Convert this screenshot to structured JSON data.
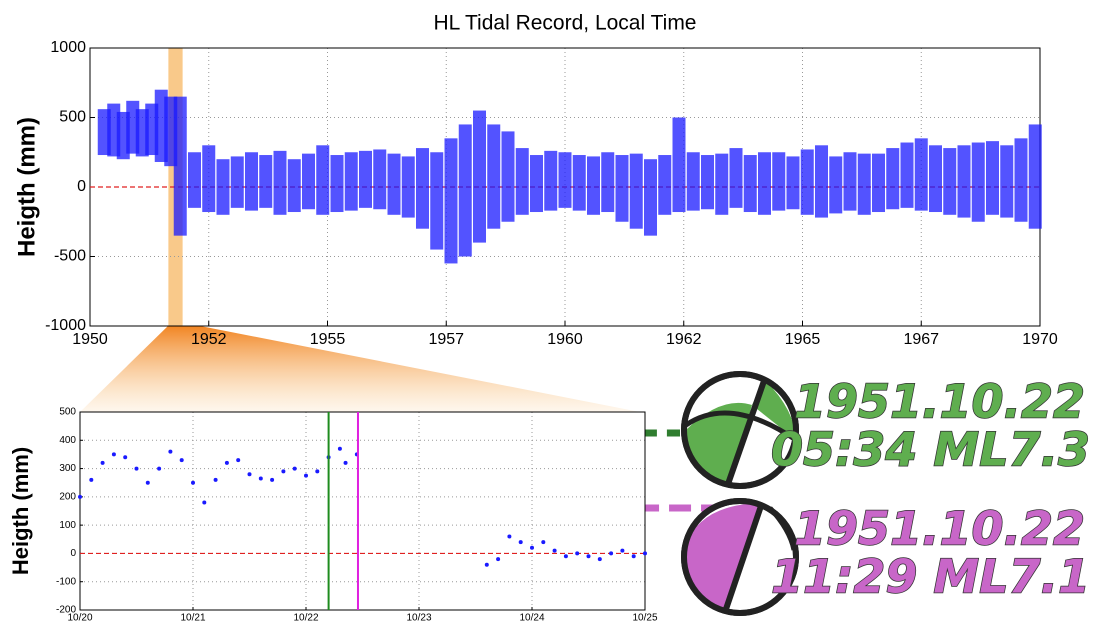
{
  "chart_data": [
    {
      "type": "range",
      "title": "HL Tidal Record, Local Time",
      "y_label": "Heigth (mm)",
      "x": [
        1950.3,
        1950.5,
        1950.7,
        1950.9,
        1951.1,
        1951.3,
        1951.5,
        1951.7,
        1951.9,
        1952.2,
        1952.5,
        1952.8,
        1953.1,
        1953.4,
        1953.7,
        1954.0,
        1954.3,
        1954.6,
        1954.9,
        1955.2,
        1955.5,
        1955.8,
        1956.1,
        1956.4,
        1956.7,
        1957.0,
        1957.3,
        1957.6,
        1957.9,
        1958.2,
        1958.5,
        1958.8,
        1959.1,
        1959.4,
        1959.7,
        1960.0,
        1960.3,
        1960.6,
        1960.9,
        1961.2,
        1961.5,
        1961.8,
        1962.1,
        1962.4,
        1962.7,
        1963.0,
        1963.3,
        1963.6,
        1963.9,
        1964.2,
        1964.5,
        1964.8,
        1965.1,
        1965.4,
        1965.7,
        1966.0,
        1966.3,
        1966.6,
        1966.9,
        1967.2,
        1967.5,
        1967.8,
        1968.1,
        1968.4,
        1968.7,
        1969.0,
        1969.3,
        1969.6,
        1969.9
      ],
      "high": [
        560,
        600,
        540,
        620,
        560,
        600,
        700,
        650,
        650,
        250,
        300,
        200,
        220,
        250,
        230,
        260,
        200,
        240,
        300,
        230,
        250,
        260,
        270,
        240,
        220,
        280,
        250,
        350,
        450,
        550,
        450,
        400,
        280,
        230,
        260,
        250,
        230,
        220,
        250,
        230,
        240,
        200,
        230,
        500,
        250,
        230,
        240,
        280,
        230,
        250,
        250,
        220,
        270,
        300,
        220,
        250,
        240,
        240,
        280,
        320,
        350,
        300,
        280,
        300,
        320,
        330,
        300,
        350,
        450
      ],
      "low": [
        230,
        220,
        200,
        240,
        220,
        230,
        180,
        150,
        -350,
        -150,
        -180,
        -200,
        -150,
        -170,
        -150,
        -200,
        -180,
        -160,
        -200,
        -180,
        -170,
        -150,
        -160,
        -200,
        -220,
        -300,
        -450,
        -550,
        -500,
        -400,
        -300,
        -250,
        -200,
        -180,
        -170,
        -150,
        -170,
        -200,
        -180,
        -250,
        -300,
        -350,
        -200,
        -180,
        -170,
        -160,
        -200,
        -150,
        -180,
        -200,
        -170,
        -160,
        -200,
        -220,
        -190,
        -170,
        -200,
        -180,
        -160,
        -150,
        -170,
        -180,
        -200,
        -220,
        -250,
        -200,
        -220,
        -250,
        -300
      ],
      "color": "#1a1aff",
      "xlim": [
        1950,
        1970
      ],
      "xticks": [
        1950,
        {
          "value": 1952.5,
          "label": "1952"
        },
        1955,
        {
          "value": 1957.5,
          "label": "1957"
        },
        1960,
        {
          "value": 1962.5,
          "label": "1962"
        },
        1965,
        {
          "value": 1967.5,
          "label": "1967"
        },
        1970
      ],
      "ylim": [
        -1000,
        1000
      ],
      "yticks": [
        -1000,
        -500,
        0,
        500,
        1000
      ],
      "grid": true,
      "ref_line": 0,
      "ref_color": "#e02020",
      "highlight": [
        1951.65,
        1951.95
      ],
      "highlight_color": "#f9c98a"
    },
    {
      "type": "scatter",
      "y_label": "Heigth (mm)",
      "x": [
        20.0,
        20.1,
        20.2,
        20.3,
        20.4,
        20.5,
        20.6,
        20.7,
        20.8,
        20.9,
        21.0,
        21.1,
        21.2,
        21.3,
        21.4,
        21.5,
        21.6,
        21.7,
        21.8,
        21.9,
        22.0,
        22.1,
        22.2,
        22.3,
        22.35,
        22.45,
        23.6,
        23.7,
        23.8,
        23.9,
        24.0,
        24.1,
        24.2,
        24.3,
        24.4,
        24.5,
        24.6,
        24.7,
        24.8,
        24.9,
        25.0
      ],
      "values": [
        200,
        260,
        320,
        350,
        340,
        300,
        250,
        300,
        360,
        330,
        250,
        180,
        260,
        320,
        330,
        280,
        265,
        260,
        290,
        300,
        275,
        290,
        340,
        370,
        320,
        350,
        -40,
        -20,
        60,
        40,
        20,
        40,
        10,
        -10,
        0,
        -10,
        -20,
        0,
        10,
        -10,
        0
      ],
      "color": "#1a1aff",
      "xlim": [
        20,
        25
      ],
      "xticks": [
        {
          "value": 20,
          "label": "10/20"
        },
        {
          "value": 21,
          "label": "10/21"
        },
        {
          "value": 22,
          "label": "10/22"
        },
        {
          "value": 23,
          "label": "10/23"
        },
        {
          "value": 24,
          "label": "10/24"
        },
        {
          "value": 25,
          "label": "10/25"
        }
      ],
      "ylim": [
        -200,
        500
      ],
      "yticks": [
        -200,
        -100,
        0,
        100,
        200,
        300,
        400,
        500
      ],
      "grid": true,
      "ref_line": 0,
      "ref_color": "#e02020",
      "events": [
        {
          "x": 22.2,
          "color": "#1e8c1e",
          "text_color": "#5fae4f",
          "date": "1951.10.22",
          "label": "05:34 ML7.3"
        },
        {
          "x": 22.46,
          "color": "#e020e0",
          "text_color": "#c866c8",
          "date": "1951.10.22",
          "label": "11:29 ML7.1"
        }
      ]
    }
  ]
}
